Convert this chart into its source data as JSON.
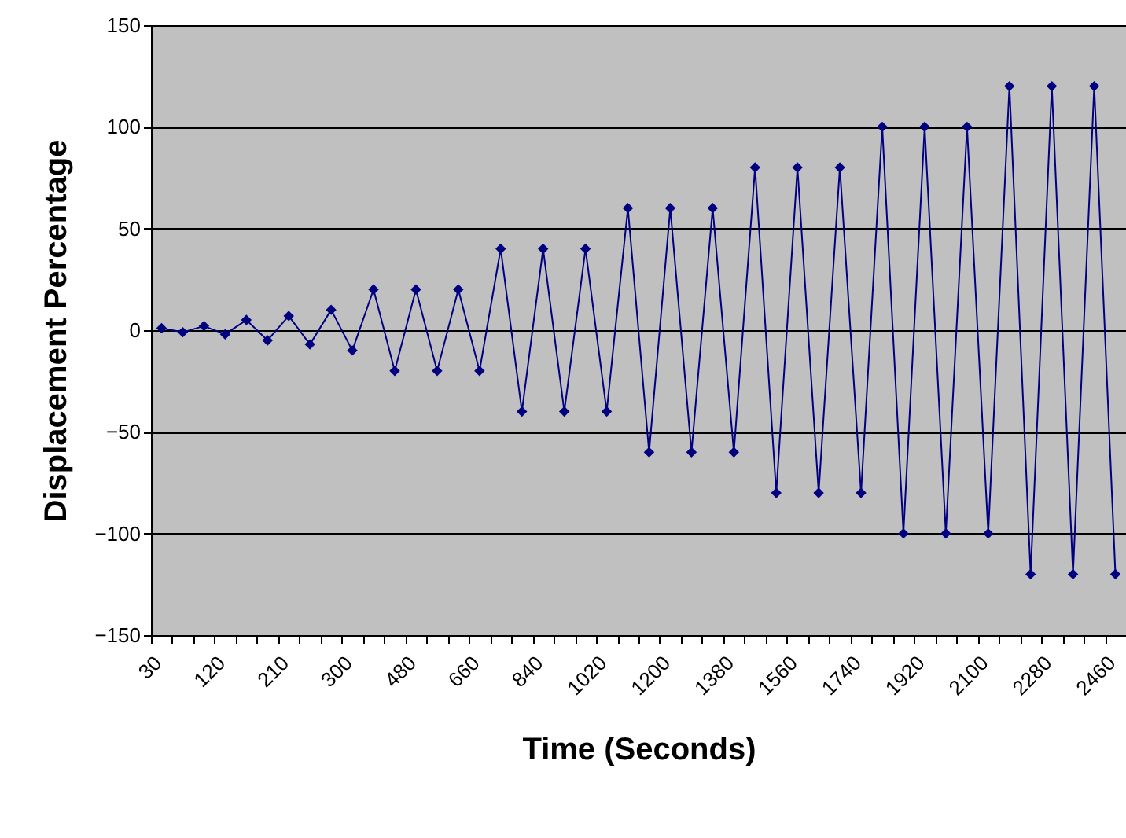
{
  "chart_data": {
    "type": "line",
    "xlabel": "Time (Seconds)",
    "ylabel": "Displacement Percentage",
    "categories": [
      "30",
      null,
      null,
      "120",
      null,
      null,
      "210",
      null,
      null,
      "300",
      null,
      null,
      "480",
      null,
      null,
      "660",
      null,
      null,
      "840",
      null,
      null,
      "1020",
      null,
      null,
      "1200",
      null,
      null,
      "1380",
      null,
      null,
      "1560",
      null,
      null,
      "1740",
      null,
      null,
      "1920",
      null,
      null,
      "2100",
      null,
      null,
      "2280",
      null,
      null,
      "2460"
    ],
    "series": [
      {
        "color": "#000080",
        "values": [
          1,
          -1,
          2,
          -2,
          5,
          -5,
          7,
          -7,
          10,
          -10,
          20,
          -20,
          20,
          -20,
          20,
          -20,
          40,
          -40,
          40,
          -40,
          40,
          -40,
          60,
          -60,
          60,
          -60,
          60,
          -60,
          80,
          -80,
          80,
          -80,
          80,
          -80,
          100,
          -100,
          100,
          -100,
          100,
          -100,
          120,
          -120,
          120,
          -120,
          120,
          -120
        ]
      }
    ],
    "ylim": [
      -150,
      150
    ],
    "yticks": [
      -150,
      -100,
      -50,
      0,
      50,
      100,
      150
    ],
    "grid": "y",
    "marker": "diamond",
    "line_style": "solid"
  }
}
